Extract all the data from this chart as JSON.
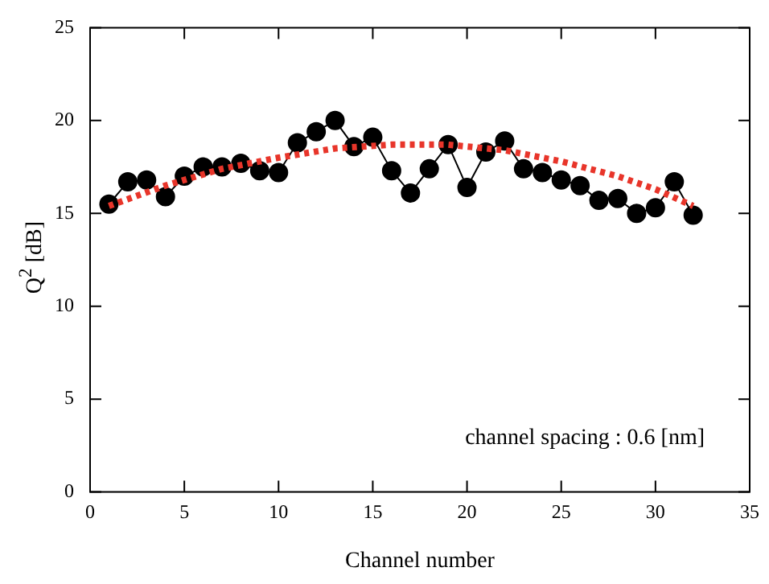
{
  "chart_data": {
    "type": "line",
    "xlabel": "Channel number",
    "ylabel": "Q$^{2}$  [dB]",
    "xlim": [
      0,
      35
    ],
    "xticks": [
      0,
      5,
      10,
      15,
      20,
      25,
      30,
      35
    ],
    "ylim": [
      0,
      25
    ],
    "yticks": [
      0,
      5,
      10,
      15,
      20,
      25
    ],
    "annotations": [
      "channel spacing : 0.6 [nm]"
    ],
    "series": [
      {
        "color": "#000000",
        "marker": "circle",
        "line_style": "solid",
        "x": [
          1,
          2,
          3,
          4,
          5,
          6,
          7,
          8,
          9,
          10,
          11,
          12,
          13,
          14,
          15,
          16,
          17,
          18,
          19,
          20,
          21,
          22,
          23,
          24,
          25,
          26,
          27,
          28,
          29,
          30,
          31,
          32
        ],
        "values": [
          15.5,
          16.7,
          16.8,
          15.9,
          17.0,
          17.5,
          17.5,
          17.7,
          17.3,
          17.2,
          18.8,
          19.4,
          20.0,
          18.6,
          19.1,
          17.3,
          16.1,
          17.4,
          18.7,
          16.4,
          18.3,
          18.9,
          17.4,
          17.2,
          16.8,
          16.5,
          15.7,
          15.8,
          15.0,
          15.3,
          16.7,
          14.9
        ]
      },
      {
        "color": "#e8352a",
        "marker": "none",
        "line_style": "dotted",
        "x": [
          1,
          4,
          7,
          10,
          13,
          16,
          19,
          22,
          25,
          28,
          30,
          32
        ],
        "values": [
          15.4,
          16.5,
          17.4,
          18.0,
          18.5,
          18.7,
          18.7,
          18.4,
          17.8,
          17.0,
          16.3,
          15.4
        ]
      }
    ]
  }
}
